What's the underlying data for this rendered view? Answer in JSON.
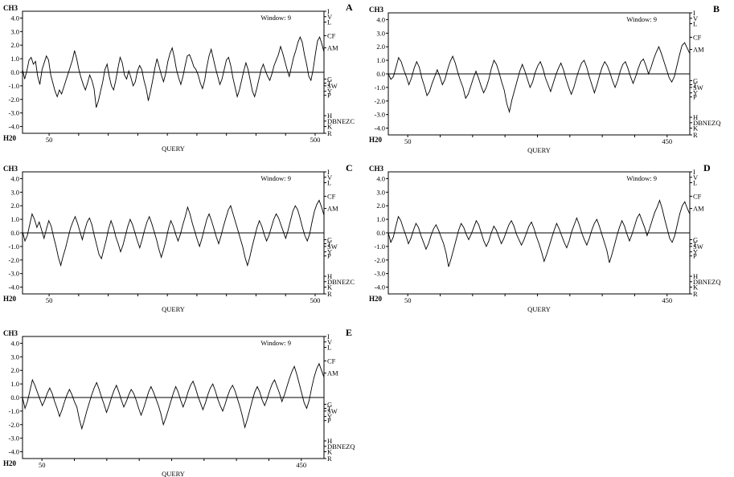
{
  "figure": {
    "panels": [
      {
        "letter": "A",
        "window_label": "Window: 9",
        "x_axis_label": "QUERY",
        "x_ticks": [
          "50",
          "500"
        ]
      },
      {
        "letter": "B",
        "window_label": "Window: 9",
        "x_axis_label": "QUERY",
        "x_ticks": [
          "50",
          "450"
        ]
      },
      {
        "letter": "C",
        "window_label": "Window: 9",
        "x_axis_label": "QUERY",
        "x_ticks": [
          "50",
          "500"
        ]
      },
      {
        "letter": "D",
        "window_label": "Window: 9",
        "x_axis_label": "QUERY",
        "x_ticks": [
          "50",
          "450"
        ]
      },
      {
        "letter": "E",
        "window_label": "Window: 9",
        "x_axis_label": "QUERY",
        "x_ticks": [
          "50",
          "450"
        ]
      }
    ],
    "y_top_label": "CH3",
    "y_bottom_label": "H20",
    "y_ticks": [
      "4.0",
      "3.0",
      "2.0",
      "1.0",
      "0.0",
      "-1.0",
      "-2.0",
      "-3.0",
      "-4.0"
    ],
    "right_scale": [
      {
        "label": "I",
        "value": 4.5
      },
      {
        "label": "V",
        "value": 4.1
      },
      {
        "label": "L",
        "value": 3.7
      },
      {
        "label": "CF",
        "value": 2.7
      },
      {
        "label": "AM",
        "value": 1.8
      },
      {
        "label": "G",
        "value": -0.5
      },
      {
        "label": "T",
        "value": -0.8
      },
      {
        "label": "SW",
        "value": -1.0
      },
      {
        "label": "Y",
        "value": -1.4
      },
      {
        "label": "P",
        "value": -1.7
      },
      {
        "label": "H",
        "value": -3.2
      },
      {
        "label": "DBNEZC",
        "value": -3.6
      },
      {
        "label": "K",
        "value": -4.0
      },
      {
        "label": "R",
        "value": -4.5
      }
    ],
    "right_scale_variant_label": "DBNEZQ"
  },
  "chart_data": [
    {
      "type": "line",
      "panel": "A",
      "ylim": [
        -4.5,
        4.5
      ],
      "xlim": [
        5,
        515
      ],
      "baseline": 0,
      "series": [
        {
          "values": [
            0.2,
            -0.5,
            0.1,
            0.9,
            1.1,
            0.6,
            0.8,
            -0.3,
            -0.9,
            0.2,
            0.7,
            1.2,
            0.9,
            -0.2,
            -0.8,
            -1.4,
            -1.8,
            -1.3,
            -1.6,
            -1.1,
            -0.6,
            -0.1,
            0.4,
            0.9,
            1.6,
            1.0,
            0.2,
            -0.4,
            -0.9,
            -1.3,
            -0.8,
            -0.2,
            -0.6,
            -1.2,
            -2.6,
            -2.1,
            -1.4,
            -0.7,
            0.2,
            0.6,
            -0.3,
            -1.0,
            -1.3,
            -0.6,
            0.3,
            1.1,
            0.7,
            -0.2,
            -0.5,
            0.1,
            -0.4,
            -1.0,
            -0.7,
            0.1,
            0.5,
            0.2,
            -0.6,
            -1.2,
            -2.1,
            -1.4,
            -0.6,
            0.3,
            1.0,
            0.4,
            -0.2,
            -0.7,
            -0.1,
            0.8,
            1.4,
            1.8,
            1.1,
            0.2,
            -0.4,
            -0.9,
            -0.3,
            0.5,
            1.2,
            1.3,
            0.9,
            0.4,
            0.2,
            -0.2,
            -0.8,
            -1.2,
            -0.6,
            0.4,
            1.2,
            1.7,
            1.0,
            0.3,
            -0.3,
            -0.9,
            -0.5,
            0.2,
            0.9,
            1.1,
            0.5,
            -0.4,
            -1.1,
            -1.8,
            -1.3,
            -0.6,
            0.1,
            0.7,
            0.2,
            -0.6,
            -1.4,
            -1.8,
            -1.2,
            -0.5,
            0.2,
            0.6,
            0.1,
            -0.3,
            -0.6,
            -0.1,
            0.5,
            0.9,
            1.3,
            1.9,
            1.4,
            0.8,
            0.2,
            -0.3,
            0.4,
            1.1,
            1.6,
            2.2,
            2.6,
            2.2,
            1.3,
            0.6,
            -0.3,
            -0.6,
            0.2,
            1.3,
            2.3,
            2.6,
            2.1,
            1.5
          ]
        }
      ]
    },
    {
      "type": "line",
      "panel": "B",
      "ylim": [
        -4.5,
        4.5
      ],
      "xlim": [
        20,
        485
      ],
      "baseline": 0,
      "series": [
        {
          "values": [
            0.0,
            -0.4,
            -0.2,
            0.5,
            1.2,
            0.9,
            0.3,
            -0.2,
            -0.8,
            -0.3,
            0.4,
            0.9,
            0.5,
            -0.3,
            -0.9,
            -1.6,
            -1.3,
            -0.7,
            -0.2,
            0.3,
            -0.2,
            -0.8,
            -0.4,
            0.3,
            0.9,
            1.3,
            0.8,
            0.1,
            -0.5,
            -1.0,
            -1.8,
            -1.5,
            -0.9,
            -0.3,
            0.2,
            -0.3,
            -0.9,
            -1.4,
            -1.0,
            -0.4,
            0.4,
            1.0,
            0.7,
            0.1,
            -0.6,
            -1.2,
            -2.2,
            -2.8,
            -1.9,
            -1.2,
            -0.5,
            0.2,
            0.7,
            0.2,
            -0.4,
            -1.0,
            -0.6,
            0.1,
            0.6,
            0.9,
            0.4,
            -0.3,
            -0.8,
            -1.3,
            -0.7,
            -0.1,
            0.4,
            0.8,
            0.3,
            -0.4,
            -1.0,
            -1.5,
            -1.0,
            -0.3,
            0.3,
            0.8,
            1.0,
            0.5,
            -0.2,
            -0.8,
            -1.4,
            -0.8,
            -0.1,
            0.5,
            0.9,
            0.6,
            0.1,
            -0.5,
            -1.0,
            -0.5,
            0.2,
            0.7,
            0.9,
            0.4,
            -0.2,
            -0.7,
            -0.2,
            0.4,
            0.9,
            1.1,
            0.6,
            0.0,
            0.5,
            1.1,
            1.6,
            2.0,
            1.5,
            0.9,
            0.3,
            -0.3,
            -0.6,
            -0.2,
            0.6,
            1.4,
            2.1,
            2.3,
            1.9,
            1.5
          ]
        }
      ]
    },
    {
      "type": "line",
      "panel": "C",
      "ylim": [
        -4.5,
        4.5
      ],
      "xlim": [
        5,
        515
      ],
      "baseline": 0,
      "series": [
        {
          "values": [
            0.1,
            -0.6,
            -0.2,
            0.6,
            1.4,
            1.0,
            0.4,
            0.8,
            0.2,
            -0.4,
            0.3,
            0.9,
            0.5,
            -0.3,
            -1.0,
            -1.8,
            -2.4,
            -1.7,
            -1.1,
            -0.4,
            0.3,
            0.8,
            1.2,
            0.7,
            0.1,
            -0.5,
            0.2,
            0.8,
            1.1,
            0.6,
            -0.2,
            -0.9,
            -1.6,
            -1.9,
            -1.2,
            -0.5,
            0.3,
            0.9,
            0.4,
            -0.3,
            -0.8,
            -1.4,
            -0.9,
            -0.2,
            0.5,
            1.0,
            0.6,
            0.0,
            -0.6,
            -1.1,
            -0.5,
            0.2,
            0.8,
            1.2,
            0.7,
            0.1,
            -0.5,
            -1.2,
            -1.8,
            -1.2,
            -0.5,
            0.3,
            0.9,
            0.5,
            -0.1,
            -0.6,
            -0.1,
            0.6,
            1.2,
            1.9,
            1.4,
            0.7,
            0.1,
            -0.5,
            -1.0,
            -0.4,
            0.3,
            1.0,
            1.4,
            0.9,
            0.3,
            -0.3,
            -0.8,
            -0.2,
            0.5,
            1.1,
            1.7,
            2.0,
            1.4,
            0.8,
            0.2,
            -0.4,
            -1.0,
            -1.8,
            -2.4,
            -1.8,
            -1.0,
            -0.3,
            0.4,
            0.9,
            0.5,
            -0.1,
            -0.6,
            -0.2,
            0.4,
            1.0,
            1.4,
            1.1,
            0.6,
            0.1,
            -0.4,
            0.2,
            0.9,
            1.6,
            2.0,
            1.7,
            1.1,
            0.4,
            -0.2,
            -0.6,
            -0.1,
            0.8,
            1.6,
            2.1,
            2.4,
            1.9,
            1.3
          ]
        }
      ]
    },
    {
      "type": "line",
      "panel": "D",
      "ylim": [
        -4.5,
        4.5
      ],
      "xlim": [
        20,
        485
      ],
      "baseline": 0,
      "series": [
        {
          "values": [
            0.0,
            -0.7,
            -0.3,
            0.5,
            1.2,
            0.9,
            0.3,
            -0.2,
            -0.8,
            -0.4,
            0.2,
            0.7,
            0.4,
            -0.2,
            -0.7,
            -1.2,
            -0.8,
            -0.2,
            0.3,
            0.6,
            0.2,
            -0.3,
            -0.8,
            -1.5,
            -2.5,
            -1.9,
            -1.2,
            -0.5,
            0.2,
            0.7,
            0.4,
            -0.1,
            -0.5,
            -0.1,
            0.4,
            0.9,
            0.6,
            0.0,
            -0.6,
            -1.0,
            -0.6,
            0.0,
            0.5,
            0.2,
            -0.3,
            -0.8,
            -0.4,
            0.1,
            0.6,
            0.9,
            0.5,
            -0.1,
            -0.5,
            -0.9,
            -0.5,
            0.0,
            0.5,
            0.8,
            0.3,
            -0.3,
            -0.8,
            -1.4,
            -2.1,
            -1.6,
            -1.0,
            -0.4,
            0.2,
            0.7,
            0.3,
            -0.2,
            -0.7,
            -1.1,
            -0.6,
            0.1,
            0.6,
            1.1,
            0.6,
            0.0,
            -0.5,
            -0.9,
            -0.4,
            0.2,
            0.7,
            1.0,
            0.5,
            -0.1,
            -0.7,
            -1.3,
            -2.2,
            -1.6,
            -0.9,
            -0.2,
            0.4,
            0.9,
            0.5,
            -0.1,
            -0.6,
            -0.1,
            0.5,
            1.1,
            1.4,
            0.9,
            0.4,
            -0.2,
            0.3,
            0.9,
            1.5,
            1.9,
            2.4,
            1.8,
            1.0,
            0.3,
            -0.4,
            -0.7,
            -0.2,
            0.6,
            1.4,
            2.0,
            2.3,
            1.8,
            1.4
          ]
        }
      ]
    },
    {
      "type": "line",
      "panel": "E",
      "ylim": [
        -4.5,
        4.5
      ],
      "xlim": [
        20,
        485
      ],
      "baseline": 0,
      "series": [
        {
          "values": [
            0.0,
            -0.8,
            -0.3,
            0.5,
            1.3,
            0.9,
            0.4,
            -0.1,
            -0.6,
            -0.2,
            0.3,
            0.7,
            0.3,
            -0.3,
            -0.8,
            -1.4,
            -0.9,
            -0.3,
            0.2,
            0.6,
            0.2,
            -0.3,
            -0.7,
            -1.6,
            -2.3,
            -1.7,
            -1.0,
            -0.4,
            0.2,
            0.7,
            1.1,
            0.6,
            0.0,
            -0.5,
            -1.1,
            -0.6,
            0.0,
            0.5,
            0.9,
            0.4,
            -0.2,
            -0.7,
            -0.3,
            0.2,
            0.6,
            0.3,
            -0.2,
            -0.8,
            -1.3,
            -0.8,
            -0.2,
            0.4,
            0.8,
            0.4,
            -0.1,
            -0.6,
            -1.2,
            -2.0,
            -1.5,
            -0.9,
            -0.3,
            0.3,
            0.8,
            0.4,
            -0.2,
            -0.7,
            -0.2,
            0.4,
            0.9,
            1.2,
            0.7,
            0.1,
            -0.4,
            -0.9,
            -0.4,
            0.2,
            0.7,
            1.0,
            0.5,
            -0.1,
            -0.6,
            -1.0,
            -0.5,
            0.1,
            0.6,
            0.9,
            0.5,
            -0.1,
            -0.7,
            -1.4,
            -2.2,
            -1.6,
            -0.9,
            -0.2,
            0.4,
            0.8,
            0.4,
            -0.2,
            -0.6,
            -0.1,
            0.5,
            1.0,
            1.3,
            0.8,
            0.3,
            -0.3,
            0.2,
            0.8,
            1.4,
            1.9,
            2.3,
            1.7,
            1.0,
            0.3,
            -0.4,
            -0.8,
            -0.2,
            0.7,
            1.5,
            2.1,
            2.5,
            2.0,
            1.5
          ]
        }
      ]
    }
  ]
}
